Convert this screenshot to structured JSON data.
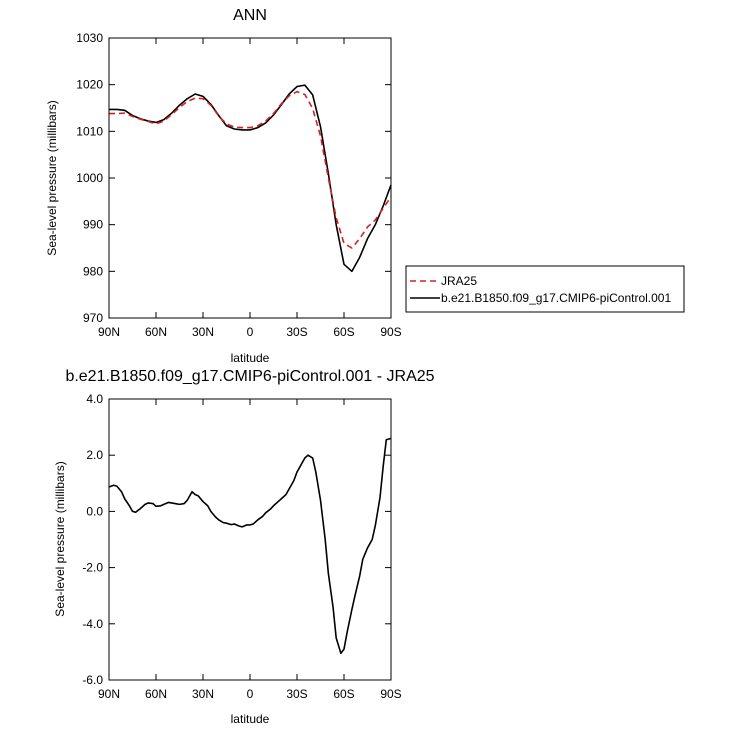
{
  "chart_data": [
    {
      "type": "line",
      "title": "ANN",
      "xlabel": "latitude",
      "ylabel": "Sea-level pressure (millibars)",
      "xlim": [
        90,
        -90
      ],
      "ylim": [
        970,
        1030
      ],
      "xticks": [
        90,
        60,
        30,
        0,
        -30,
        -60,
        -90
      ],
      "xtick_labels": [
        "90N",
        "60N",
        "30N",
        "0",
        "30S",
        "60S",
        "90S"
      ],
      "yticks": [
        970,
        980,
        990,
        1000,
        1010,
        1020,
        1030
      ],
      "ytick_labels": [
        "970",
        "980",
        "990",
        "1000",
        "1010",
        "1020",
        "1030"
      ],
      "legend": "right",
      "series": [
        {
          "name": "JRA25",
          "color": "#d62020",
          "dash": "dashed",
          "x": [
            90,
            85,
            80,
            75,
            70,
            65,
            60,
            55,
            50,
            45,
            40,
            35,
            30,
            25,
            20,
            15,
            10,
            5,
            0,
            -5,
            -10,
            -15,
            -20,
            -25,
            -30,
            -35,
            -40,
            -45,
            -50,
            -55,
            -60,
            -65,
            -70,
            -75,
            -80,
            -85,
            -90
          ],
          "y": [
            1013.8,
            1013.8,
            1013.9,
            1013.2,
            1012.6,
            1012.1,
            1011.6,
            1012.2,
            1013.6,
            1015.1,
            1016.4,
            1017.1,
            1017.0,
            1015.6,
            1013.3,
            1011.6,
            1010.9,
            1010.8,
            1010.8,
            1011.2,
            1012.2,
            1013.8,
            1015.9,
            1017.6,
            1018.5,
            1017.9,
            1014.9,
            1009.0,
            1000.0,
            991.5,
            986.0,
            985.0,
            987.0,
            989.5,
            991.0,
            993.5,
            996.0
          ]
        },
        {
          "name": "b.e21.B1850.f09_g17.CMIP6-piControl.001",
          "color": "#000000",
          "dash": "solid",
          "x": [
            90,
            85,
            80,
            75,
            70,
            65,
            60,
            55,
            50,
            45,
            40,
            35,
            30,
            25,
            20,
            15,
            10,
            5,
            0,
            -5,
            -10,
            -15,
            -20,
            -25,
            -30,
            -35,
            -40,
            -45,
            -50,
            -55,
            -60,
            -65,
            -70,
            -75,
            -80,
            -85,
            -90
          ],
          "y": [
            1014.7,
            1014.7,
            1014.5,
            1013.4,
            1012.7,
            1012.2,
            1011.9,
            1012.5,
            1013.9,
            1015.6,
            1017.0,
            1018.0,
            1017.5,
            1015.8,
            1013.4,
            1011.2,
            1010.5,
            1010.3,
            1010.3,
            1010.8,
            1011.8,
            1013.5,
            1015.7,
            1018.0,
            1019.6,
            1019.9,
            1017.8,
            1011.0,
            1001.0,
            990.0,
            981.5,
            980.0,
            983.0,
            987.0,
            990.0,
            994.0,
            998.5
          ]
        }
      ]
    },
    {
      "type": "line",
      "title": "b.e21.B1850.f09_g17.CMIP6-piControl.001 - JRA25",
      "xlabel": "latitude",
      "ylabel": "Sea-level pressure (millibars)",
      "xlim": [
        90,
        -90
      ],
      "ylim": [
        -6.0,
        4.0
      ],
      "xticks": [
        90,
        60,
        30,
        0,
        -30,
        -60,
        -90
      ],
      "xtick_labels": [
        "90N",
        "60N",
        "30N",
        "0",
        "30S",
        "60S",
        "90S"
      ],
      "yticks": [
        -6.0,
        -4.0,
        -2.0,
        0.0,
        2.0,
        4.0
      ],
      "ytick_labels": [
        "-6.0",
        "-4.0",
        "-2.0",
        "0.0",
        "2.0",
        "4.0"
      ],
      "series": [
        {
          "color": "#000000",
          "dash": "solid",
          "x": [
            90,
            87,
            85,
            82,
            80,
            77,
            75,
            73,
            70,
            67,
            65,
            62,
            60,
            57,
            55,
            52,
            50,
            47,
            45,
            42,
            40,
            37,
            35,
            33,
            30,
            27,
            25,
            22,
            20,
            17,
            15,
            12,
            10,
            7,
            5,
            2,
            0,
            -2,
            -5,
            -8,
            -10,
            -13,
            -15,
            -18,
            -20,
            -23,
            -25,
            -28,
            -30,
            -33,
            -35,
            -37,
            -40,
            -42,
            -45,
            -48,
            -50,
            -53,
            -55,
            -58,
            -60,
            -62,
            -65,
            -67,
            -70,
            -72,
            -75,
            -78,
            -80,
            -83,
            -85,
            -87,
            -90
          ],
          "y": [
            0.87,
            0.93,
            0.9,
            0.7,
            0.45,
            0.2,
            0.0,
            -0.03,
            0.1,
            0.25,
            0.3,
            0.28,
            0.18,
            0.2,
            0.25,
            0.32,
            0.3,
            0.27,
            0.25,
            0.28,
            0.4,
            0.7,
            0.6,
            0.55,
            0.35,
            0.2,
            0.0,
            -0.2,
            -0.3,
            -0.4,
            -0.42,
            -0.47,
            -0.45,
            -0.52,
            -0.55,
            -0.48,
            -0.48,
            -0.45,
            -0.3,
            -0.18,
            -0.05,
            0.08,
            0.2,
            0.35,
            0.45,
            0.6,
            0.8,
            1.1,
            1.4,
            1.7,
            1.9,
            2.0,
            1.9,
            1.4,
            0.4,
            -1.0,
            -2.2,
            -3.4,
            -4.5,
            -5.05,
            -4.9,
            -4.3,
            -3.5,
            -3.0,
            -2.3,
            -1.7,
            -1.3,
            -1.0,
            -0.5,
            0.5,
            1.6,
            2.55,
            2.6
          ]
        }
      ]
    }
  ]
}
